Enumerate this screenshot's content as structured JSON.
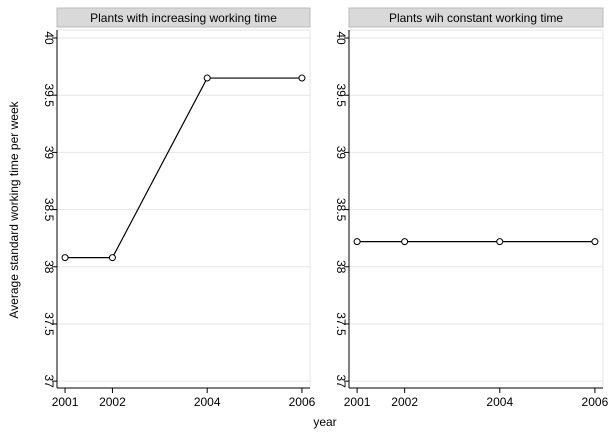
{
  "chart_data": [
    {
      "type": "line",
      "title": "Plants with increasing working time",
      "y_label": "Average standard working time per week",
      "x_label": "year",
      "x": [
        2001,
        2002,
        2004,
        2006
      ],
      "values": [
        38.08,
        38.08,
        39.65,
        39.65
      ],
      "color": "#000000",
      "xlim": [
        2000.83,
        2006.17
      ],
      "ylim": [
        36.94,
        40.07
      ],
      "xticks": [
        2001,
        2002,
        2004,
        2006
      ],
      "yticks": [
        37,
        37.5,
        38,
        38.5,
        39,
        39.5,
        40
      ],
      "grid": true
    },
    {
      "type": "line",
      "title": "Plants wih constant working time",
      "x": [
        2001,
        2002,
        2004,
        2006
      ],
      "values": [
        38.22,
        38.22,
        38.22,
        38.22
      ],
      "color": "#000000",
      "xlim": [
        2000.83,
        2006.17
      ],
      "ylim": [
        36.94,
        40.07
      ],
      "xticks": [
        2001,
        2002,
        2004,
        2006
      ],
      "yticks": [
        37,
        37.5,
        38,
        38.5,
        39,
        39.5,
        40
      ],
      "grid": true
    }
  ]
}
